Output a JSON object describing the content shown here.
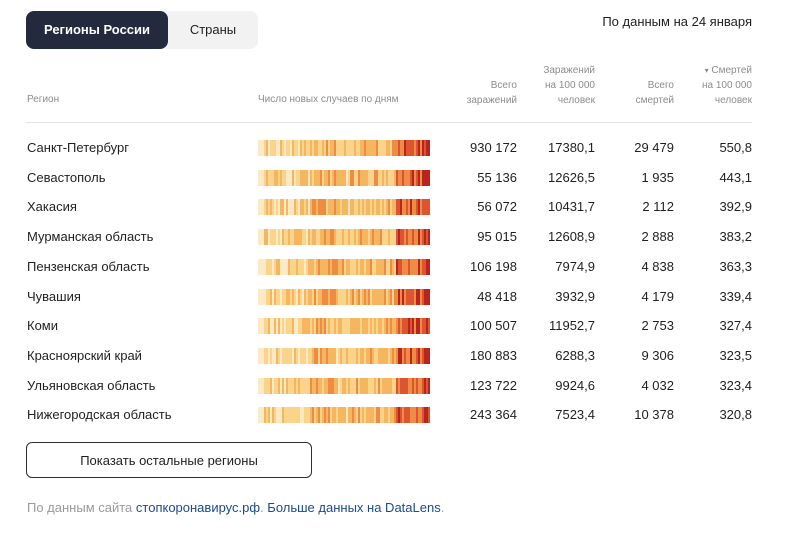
{
  "tabs": [
    {
      "label": "Регионы России",
      "active": true
    },
    {
      "label": "Страны",
      "active": false
    }
  ],
  "date_note": "По данным на 24 января",
  "columns": {
    "region": "Регион",
    "trend": "Число новых случаев по дням",
    "total_cases": [
      "Всего",
      "заражений"
    ],
    "cases_per_100k": [
      "Заражений",
      "на 100 000",
      "человек"
    ],
    "total_deaths": [
      "Всего",
      "смертей"
    ],
    "deaths_per_100k_sort": "▾",
    "deaths_per_100k": [
      "Смертей",
      "на 100 000",
      "человек"
    ]
  },
  "rows": [
    {
      "region": "Санкт-Петербург",
      "total_cases": "930 172",
      "cases_per_100k": "17380,1",
      "total_deaths": "29 479",
      "deaths_per_100k": "550,8"
    },
    {
      "region": "Севастополь",
      "total_cases": "55 136",
      "cases_per_100k": "12626,5",
      "total_deaths": "1 935",
      "deaths_per_100k": "443,1"
    },
    {
      "region": "Хакасия",
      "total_cases": "56 072",
      "cases_per_100k": "10431,7",
      "total_deaths": "2 112",
      "deaths_per_100k": "392,9"
    },
    {
      "region": "Мурманская область",
      "total_cases": "95 015",
      "cases_per_100k": "12608,9",
      "total_deaths": "2 888",
      "deaths_per_100k": "383,2"
    },
    {
      "region": "Пензенская область",
      "total_cases": "106 198",
      "cases_per_100k": "7974,9",
      "total_deaths": "4 838",
      "deaths_per_100k": "363,3"
    },
    {
      "region": "Чувашия",
      "total_cases": "48 418",
      "cases_per_100k": "3932,9",
      "total_deaths": "4 179",
      "deaths_per_100k": "339,4"
    },
    {
      "region": "Коми",
      "total_cases": "100 507",
      "cases_per_100k": "11952,7",
      "total_deaths": "2 753",
      "deaths_per_100k": "327,4"
    },
    {
      "region": "Красноярский край",
      "total_cases": "180 883",
      "cases_per_100k": "6288,3",
      "total_deaths": "9 306",
      "deaths_per_100k": "323,5"
    },
    {
      "region": "Ульяновская область",
      "total_cases": "123 722",
      "cases_per_100k": "9924,6",
      "total_deaths": "4 032",
      "deaths_per_100k": "323,4"
    },
    {
      "region": "Нижегородская область",
      "total_cases": "243 364",
      "cases_per_100k": "7523,4",
      "total_deaths": "10 378",
      "deaths_per_100k": "320,8"
    }
  ],
  "show_more_label": "Показать остальные регионы",
  "footer": {
    "prefix": "По данным сайта ",
    "link1": "стопкоронавирус.рф",
    "middle": ". ",
    "link2": "Больше данных на DataLens",
    "suffix": "."
  },
  "heat_colors": [
    "#fde9c4",
    "#f9d48a",
    "#f5b65f",
    "#ee8c44",
    "#dc5530",
    "#b8241e"
  ]
}
